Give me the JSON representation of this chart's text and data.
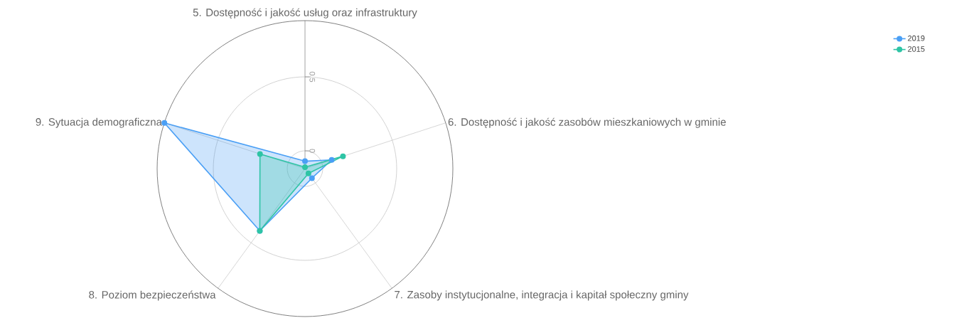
{
  "chart_data": {
    "type": "radar",
    "categories": [
      "5. Dostępność i jakość usług oraz infrastruktury",
      "6. Dostępność i jakość zasobów mieszkaniowych w gminie",
      "7. Zasoby instytucjonalne, integracja i kapitał społeczny gminy",
      "8. Poziom bezpieczeństwa",
      "9. Sytuacja demograficzna"
    ],
    "series": [
      {
        "name": "2019",
        "color": "#4a9ff5",
        "values": [
          -0.07,
          0.07,
          -0.04,
          0.4,
          0.88
        ]
      },
      {
        "name": "2015",
        "color": "#2ec4a5",
        "values": [
          -0.11,
          0.15,
          -0.08,
          0.4,
          0.2
        ]
      }
    ],
    "ylim": [
      -0.12,
      0.88
    ],
    "yticks": [
      0,
      0.5
    ],
    "grid": true,
    "legend": "top right",
    "marker": "circle",
    "line_style": "solid"
  }
}
